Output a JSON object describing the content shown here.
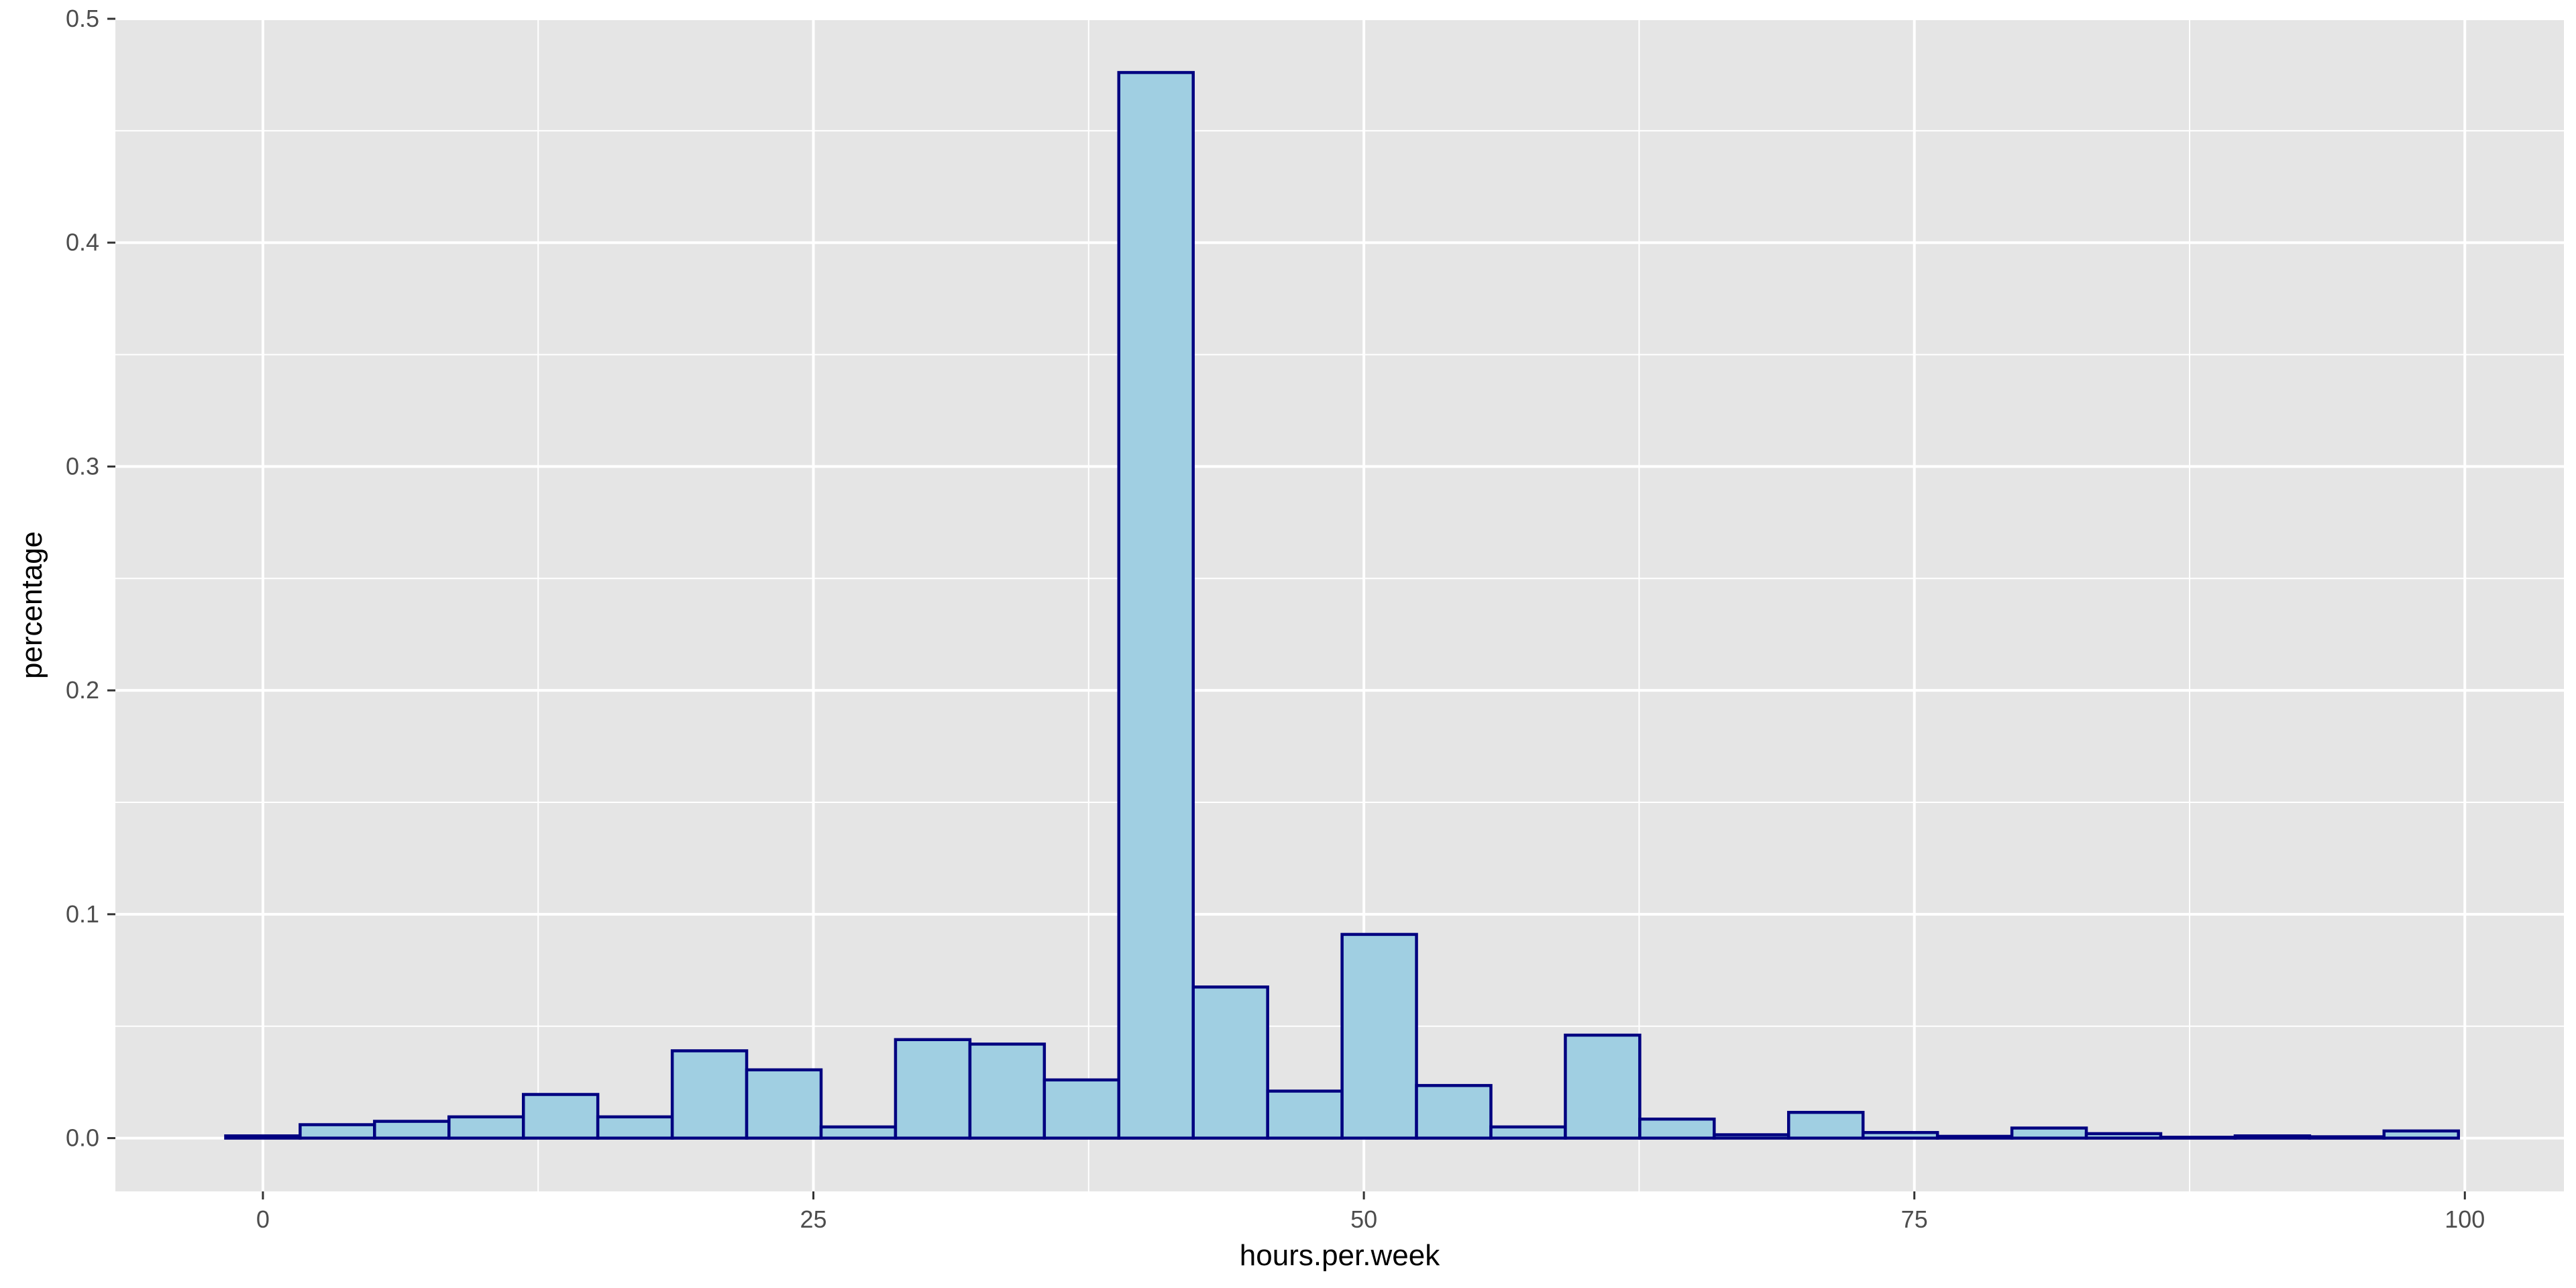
{
  "chart_data": {
    "type": "bar",
    "subtype": "histogram",
    "xlabel": "hours.per.week",
    "ylabel": "percentage",
    "xlim": [
      -6.7,
      104.5
    ],
    "ylim": [
      -0.0238,
      0.5
    ],
    "x_ticks": [
      0,
      25,
      50,
      75,
      100
    ],
    "x_tick_labels": [
      "0",
      "25",
      "50",
      "75",
      "100"
    ],
    "y_ticks": [
      0.0,
      0.1,
      0.2,
      0.3,
      0.4,
      0.5
    ],
    "y_tick_labels": [
      "0.0",
      "0.1",
      "0.2",
      "0.3",
      "0.4",
      "0.5"
    ],
    "grid": true,
    "bin_width": 3.379,
    "bins": [
      {
        "x0": -1.69,
        "x1": 1.69,
        "value": 0.001
      },
      {
        "x0": 1.69,
        "x1": 5.07,
        "value": 0.006
      },
      {
        "x0": 5.07,
        "x1": 8.45,
        "value": 0.0075
      },
      {
        "x0": 8.45,
        "x1": 11.83,
        "value": 0.0095
      },
      {
        "x0": 11.83,
        "x1": 15.21,
        "value": 0.0195
      },
      {
        "x0": 15.21,
        "x1": 18.59,
        "value": 0.0095
      },
      {
        "x0": 18.59,
        "x1": 21.97,
        "value": 0.039
      },
      {
        "x0": 21.97,
        "x1": 25.35,
        "value": 0.0305
      },
      {
        "x0": 25.35,
        "x1": 28.73,
        "value": 0.005
      },
      {
        "x0": 28.73,
        "x1": 32.11,
        "value": 0.044
      },
      {
        "x0": 32.11,
        "x1": 35.49,
        "value": 0.042
      },
      {
        "x0": 35.49,
        "x1": 38.87,
        "value": 0.026
      },
      {
        "x0": 38.87,
        "x1": 42.25,
        "value": 0.476
      },
      {
        "x0": 42.25,
        "x1": 45.63,
        "value": 0.0675
      },
      {
        "x0": 45.63,
        "x1": 49.01,
        "value": 0.021
      },
      {
        "x0": 49.01,
        "x1": 52.39,
        "value": 0.091
      },
      {
        "x0": 52.39,
        "x1": 55.77,
        "value": 0.0235
      },
      {
        "x0": 55.77,
        "x1": 59.15,
        "value": 0.005
      },
      {
        "x0": 59.15,
        "x1": 62.53,
        "value": 0.046
      },
      {
        "x0": 62.53,
        "x1": 65.91,
        "value": 0.0085
      },
      {
        "x0": 65.91,
        "x1": 69.29,
        "value": 0.0015
      },
      {
        "x0": 69.29,
        "x1": 72.67,
        "value": 0.0115
      },
      {
        "x0": 72.67,
        "x1": 76.05,
        "value": 0.0025
      },
      {
        "x0": 76.05,
        "x1": 79.43,
        "value": 0.0008
      },
      {
        "x0": 79.43,
        "x1": 82.81,
        "value": 0.0045
      },
      {
        "x0": 82.81,
        "x1": 86.19,
        "value": 0.002
      },
      {
        "x0": 86.19,
        "x1": 89.57,
        "value": 0.0004
      },
      {
        "x0": 89.57,
        "x1": 92.95,
        "value": 0.001
      },
      {
        "x0": 92.95,
        "x1": 96.33,
        "value": 0.0006
      },
      {
        "x0": 96.33,
        "x1": 99.71,
        "value": 0.0032
      }
    ],
    "colors": {
      "panel_background": "#e5e5e5",
      "grid_line": "#ffffff",
      "bar_fill": "#a0cfe2",
      "bar_outline": "#000080",
      "tick_label": "#4d4d4d",
      "axis_title": "#000000"
    }
  }
}
